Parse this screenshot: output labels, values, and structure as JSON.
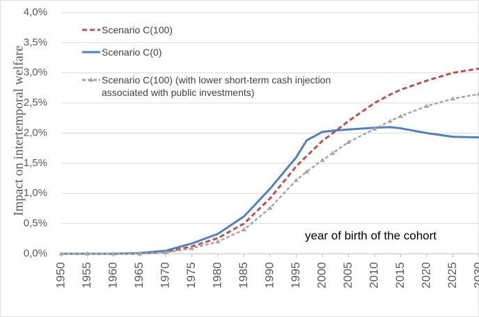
{
  "chart_data": {
    "type": "line",
    "ylabel": "Impact on intertemporal welfare",
    "xlabel": "year of birth of the cohort",
    "x": [
      1950,
      1955,
      1960,
      1965,
      1970,
      1975,
      1980,
      1985,
      1990,
      1995,
      1997,
      2000,
      2002,
      2005,
      2010,
      2013,
      2015,
      2020,
      2025,
      2030
    ],
    "series": [
      {
        "name": "Scenario C(100)",
        "color": "#c0504d",
        "style": "dashed",
        "values": [
          0,
          0,
          0,
          0,
          0.03,
          0.12,
          0.26,
          0.5,
          0.92,
          1.45,
          1.62,
          1.87,
          2.0,
          2.2,
          2.5,
          2.64,
          2.72,
          2.87,
          3.0,
          3.07
        ]
      },
      {
        "name": "Scenario C(0)",
        "color": "#4f81bd",
        "style": "solid",
        "values": [
          0,
          0,
          0,
          0.01,
          0.05,
          0.17,
          0.33,
          0.62,
          1.08,
          1.6,
          1.88,
          2.02,
          2.04,
          2.06,
          2.09,
          2.1,
          2.08,
          2.0,
          1.94,
          1.93
        ]
      },
      {
        "name": "Scenario C(100) (with lower short-term cash injection associated with public investments)",
        "color": "#a6a6a6",
        "style": "dashed-triangle",
        "values": [
          0,
          0,
          0,
          0,
          0.02,
          0.09,
          0.2,
          0.4,
          0.76,
          1.22,
          1.36,
          1.55,
          1.67,
          1.85,
          2.07,
          2.2,
          2.28,
          2.45,
          2.57,
          2.65
        ]
      }
    ],
    "xlim": [
      1950,
      2030
    ],
    "xticks": [
      1950,
      1955,
      1960,
      1965,
      1970,
      1975,
      1980,
      1985,
      1990,
      1995,
      2000,
      2005,
      2010,
      2015,
      2020,
      2025,
      2030
    ],
    "ylim": [
      0,
      4
    ],
    "yticks": [
      {
        "value": 0,
        "label": "0,0%"
      },
      {
        "value": 0.5,
        "label": "0,5%"
      },
      {
        "value": 1,
        "label": "1,0%"
      },
      {
        "value": 1.5,
        "label": "1,5%"
      },
      {
        "value": 2,
        "label": "2,0%"
      },
      {
        "value": 2.5,
        "label": "2,5%"
      },
      {
        "value": 3,
        "label": "3,0%"
      },
      {
        "value": 3.5,
        "label": "3,5%"
      },
      {
        "value": 4,
        "label": "4,0%"
      }
    ],
    "grid": true,
    "legend": "top-left"
  }
}
